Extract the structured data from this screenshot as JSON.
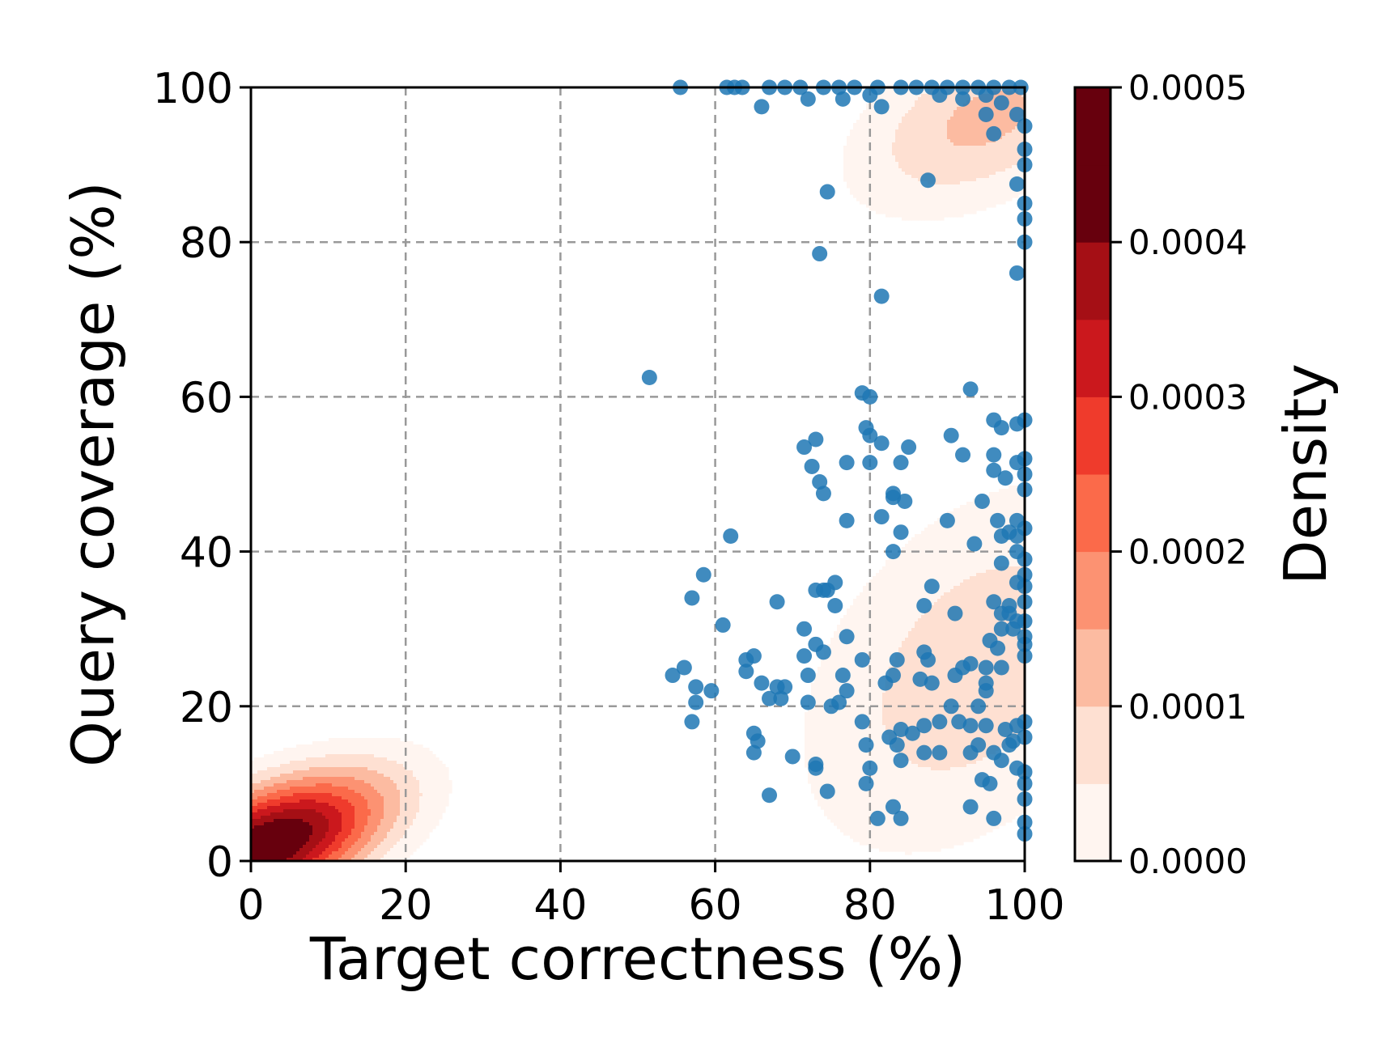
{
  "chart_data": {
    "type": "scatter",
    "xlabel": "Target correctness (%)",
    "ylabel": "Query coverage (%)",
    "xlim": [
      0,
      100
    ],
    "ylim": [
      0,
      100
    ],
    "x_ticks": [
      0,
      20,
      40,
      60,
      80,
      100
    ],
    "y_ticks": [
      0,
      20,
      40,
      60,
      80,
      100
    ],
    "grid": true,
    "grid_style": "dashed",
    "colors": {
      "points": "#1f77b4",
      "grid": "#999999",
      "density_scale": [
        "#fff5f0",
        "#fee0d2",
        "#fcbba1",
        "#fc9272",
        "#fb6a4a",
        "#ef3b2c",
        "#cb181d",
        "#a50f15",
        "#67000d"
      ]
    },
    "colorbar": {
      "label": "Density",
      "ticks": [
        "0.0000",
        "0.0001",
        "0.0002",
        "0.0003",
        "0.0004",
        "0.0005"
      ],
      "range": [
        0,
        0.0005
      ],
      "levels": [
        0,
        5e-05,
        0.0001,
        0.00015,
        0.0002,
        0.00025,
        0.0003,
        0.00035,
        0.0004,
        0.00045,
        0.0005
      ]
    },
    "density_components": [
      {
        "mx": 2,
        "my": 2,
        "sx": 11,
        "sy": 6.5,
        "rho": 0.55,
        "peak": 0.00052
      },
      {
        "mx": 94,
        "my": 25,
        "sx": 16,
        "sy": 17,
        "rho": 0.4,
        "peak": 0.000135
      },
      {
        "mx": 95,
        "my": 96,
        "sx": 12,
        "sy": 8.5,
        "rho": 0.45,
        "peak": 0.000165
      }
    ],
    "points": [
      [
        55.5,
        100
      ],
      [
        61.5,
        100
      ],
      [
        62.5,
        100
      ],
      [
        63.5,
        100
      ],
      [
        67,
        100
      ],
      [
        69,
        100
      ],
      [
        71,
        100
      ],
      [
        74,
        100
      ],
      [
        76,
        100
      ],
      [
        78,
        100
      ],
      [
        81,
        100
      ],
      [
        84,
        100
      ],
      [
        86,
        100
      ],
      [
        88,
        100
      ],
      [
        90,
        100
      ],
      [
        92,
        100
      ],
      [
        94,
        100
      ],
      [
        96,
        100
      ],
      [
        98,
        100
      ],
      [
        99.5,
        100
      ],
      [
        66,
        97.5
      ],
      [
        72,
        98.5
      ],
      [
        76.5,
        98.5
      ],
      [
        80,
        99
      ],
      [
        81.5,
        97.5
      ],
      [
        89,
        99
      ],
      [
        92,
        98.5
      ],
      [
        95,
        99
      ],
      [
        97,
        98
      ],
      [
        99,
        96.5
      ],
      [
        100,
        95
      ],
      [
        95,
        96.5
      ],
      [
        96,
        94
      ],
      [
        100,
        92
      ],
      [
        100,
        90
      ],
      [
        99,
        87.5
      ],
      [
        87.5,
        88
      ],
      [
        100,
        85
      ],
      [
        100,
        83
      ],
      [
        74.5,
        86.5
      ],
      [
        73.5,
        78.5
      ],
      [
        100,
        80
      ],
      [
        99,
        76
      ],
      [
        81.5,
        73
      ],
      [
        51.5,
        62.5
      ],
      [
        93,
        61
      ],
      [
        79,
        60.5
      ],
      [
        80,
        60
      ],
      [
        96,
        57
      ],
      [
        97,
        56
      ],
      [
        99,
        56.5
      ],
      [
        100,
        57
      ],
      [
        79.5,
        56
      ],
      [
        80,
        55
      ],
      [
        81.5,
        54
      ],
      [
        73,
        54.5
      ],
      [
        71.5,
        53.5
      ],
      [
        90.5,
        55
      ],
      [
        85,
        53.5
      ],
      [
        96,
        52.5
      ],
      [
        99,
        51.5
      ],
      [
        100,
        52
      ],
      [
        92,
        52.5
      ],
      [
        77,
        51.5
      ],
      [
        80,
        51.5
      ],
      [
        84,
        51.5
      ],
      [
        72.5,
        51
      ],
      [
        73.5,
        49
      ],
      [
        96,
        50.5
      ],
      [
        97.5,
        49.5
      ],
      [
        100,
        50
      ],
      [
        100,
        48
      ],
      [
        74,
        47.5
      ],
      [
        83,
        47.5
      ],
      [
        83,
        47
      ],
      [
        84.5,
        46.5
      ],
      [
        94.5,
        46.5
      ],
      [
        81.5,
        44.5
      ],
      [
        77,
        44
      ],
      [
        90,
        44
      ],
      [
        96.5,
        44
      ],
      [
        99,
        44
      ],
      [
        100,
        43
      ],
      [
        84,
        42.5
      ],
      [
        97,
        42
      ],
      [
        98,
        42.5
      ],
      [
        99,
        42
      ],
      [
        62,
        42
      ],
      [
        93.5,
        41
      ],
      [
        83,
        40
      ],
      [
        99,
        40
      ],
      [
        100,
        39
      ],
      [
        97,
        38.5
      ],
      [
        100,
        37
      ],
      [
        58.5,
        37
      ],
      [
        75.5,
        36
      ],
      [
        99,
        36
      ],
      [
        100,
        35.5
      ],
      [
        73,
        35
      ],
      [
        74,
        35
      ],
      [
        74.5,
        35
      ],
      [
        88,
        35.5
      ],
      [
        96,
        33.5
      ],
      [
        100,
        33.5
      ],
      [
        98,
        33
      ],
      [
        87,
        33
      ],
      [
        68,
        33.5
      ],
      [
        75.5,
        33
      ],
      [
        97,
        32
      ],
      [
        98,
        32
      ],
      [
        99,
        31
      ],
      [
        91,
        32
      ],
      [
        100,
        31
      ],
      [
        57,
        34
      ],
      [
        61,
        30.5
      ],
      [
        71.5,
        30
      ],
      [
        77,
        29
      ],
      [
        97,
        30
      ],
      [
        98.5,
        30
      ],
      [
        100,
        29
      ],
      [
        73,
        28
      ],
      [
        71.5,
        26.5
      ],
      [
        74,
        27
      ],
      [
        79,
        26
      ],
      [
        83.5,
        26
      ],
      [
        87,
        27
      ],
      [
        87.5,
        26
      ],
      [
        92,
        25
      ],
      [
        93,
        25.5
      ],
      [
        95,
        25
      ],
      [
        96.5,
        27.5
      ],
      [
        95.5,
        28.5
      ],
      [
        100,
        28
      ],
      [
        100,
        26.5
      ],
      [
        64,
        26
      ],
      [
        65,
        26.5
      ],
      [
        64,
        24.5
      ],
      [
        56,
        25
      ],
      [
        54.5,
        24
      ],
      [
        83,
        24
      ],
      [
        86.5,
        23.5
      ],
      [
        88,
        23
      ],
      [
        91,
        24
      ],
      [
        95,
        23
      ],
      [
        97,
        25
      ],
      [
        76.5,
        24
      ],
      [
        72,
        24
      ],
      [
        68,
        22.5
      ],
      [
        57.5,
        22.5
      ],
      [
        59.5,
        22
      ],
      [
        66,
        23
      ],
      [
        69,
        22.5
      ],
      [
        77,
        22
      ],
      [
        82,
        23
      ],
      [
        76,
        20.5
      ],
      [
        67,
        21
      ],
      [
        68.5,
        21
      ],
      [
        57.5,
        20.5
      ],
      [
        75,
        20
      ],
      [
        72,
        20.5
      ],
      [
        90.5,
        20
      ],
      [
        94,
        20
      ],
      [
        95,
        22
      ],
      [
        95,
        17.5
      ],
      [
        89,
        18
      ],
      [
        91.5,
        18
      ],
      [
        93,
        17.5
      ],
      [
        99,
        17.5
      ],
      [
        97.5,
        17
      ],
      [
        100,
        18
      ],
      [
        79,
        18
      ],
      [
        84,
        17
      ],
      [
        85.5,
        16.5
      ],
      [
        87,
        17.5
      ],
      [
        82.5,
        16
      ],
      [
        83.5,
        15
      ],
      [
        98,
        15
      ],
      [
        65,
        16.5
      ],
      [
        65.5,
        15.5
      ],
      [
        65,
        14
      ],
      [
        79.5,
        15
      ],
      [
        80,
        12
      ],
      [
        84,
        13
      ],
      [
        87,
        14
      ],
      [
        89,
        14
      ],
      [
        93,
        14
      ],
      [
        96,
        14
      ],
      [
        94,
        15
      ],
      [
        97,
        13
      ],
      [
        98.5,
        15.5
      ],
      [
        100,
        16
      ],
      [
        99,
        12
      ],
      [
        100,
        11.5
      ],
      [
        70,
        13.5
      ],
      [
        73,
        12.5
      ],
      [
        73,
        12
      ],
      [
        79.5,
        10
      ],
      [
        95.5,
        10
      ],
      [
        94.5,
        10.5
      ],
      [
        100,
        10
      ],
      [
        74.5,
        9
      ],
      [
        67,
        8.5
      ],
      [
        83,
        7
      ],
      [
        81,
        5.5
      ],
      [
        84,
        5.5
      ],
      [
        93,
        7
      ],
      [
        96,
        5.5
      ],
      [
        100,
        5
      ],
      [
        100,
        3.5
      ],
      [
        57,
        18
      ],
      [
        100,
        8
      ]
    ]
  }
}
